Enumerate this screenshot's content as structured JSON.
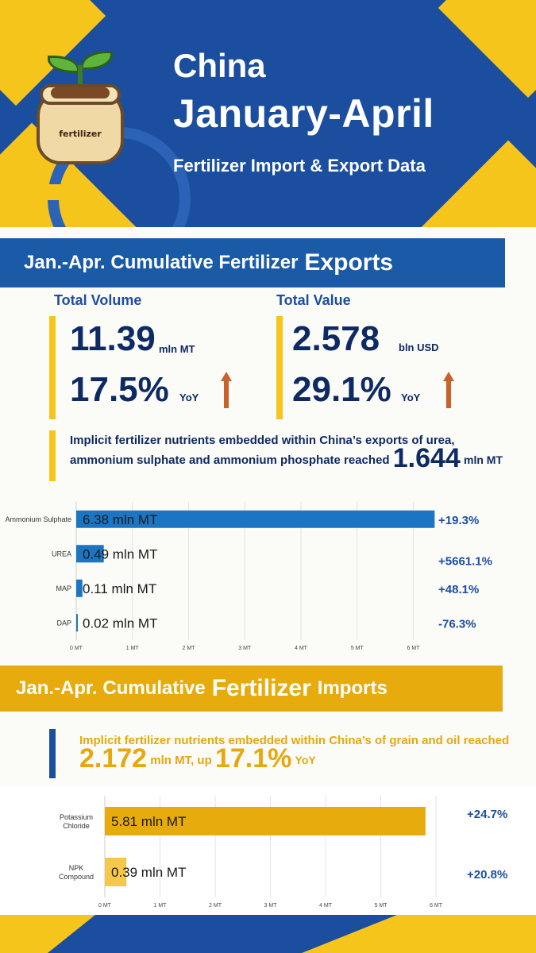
{
  "header": {
    "title": "China",
    "period": "January-April",
    "subtitle": "Fertilizer Import & Export Data",
    "logo_text": "fertilizer"
  },
  "exports": {
    "banner_prefix": "Jan.-Apr. Cumulative Fertilizer",
    "banner_emph": "Exports",
    "volume": {
      "heading": "Total Volume",
      "value": "11.39",
      "unit": "mln MT",
      "yoy": "17.5%",
      "yoy_label": "YoY"
    },
    "value": {
      "heading": "Total Value",
      "value": "2.578",
      "unit": "bln USD",
      "yoy": "29.1%",
      "yoy_label": "YoY"
    },
    "note": {
      "line1": "Implicit fertilizer nutrients embedded within China’s exports of urea,",
      "line2": "ammonium sulphate and ammonium phosphate reached",
      "value": "1.644",
      "unit": "mln MT"
    }
  },
  "imports": {
    "banner_prefix": "Jan.-Apr. Cumulative",
    "banner_emph": "Fertilizer",
    "banner_suffix": "Imports",
    "note": {
      "line1": "Implicit fertilizer nutrients embedded within China’s  of grain and oil reached",
      "value": "2.172",
      "mid": "mln MT, up",
      "pct": "17.1%",
      "yoy": "YoY"
    }
  },
  "colors": {
    "navy": "#1b4e9e",
    "gold": "#f5c51c",
    "export_bar": "#1b75c3",
    "import_bar": "#e8ab0e",
    "import_bar_light": "#f5c74a",
    "arrow": "#c8622a"
  },
  "chart_data": [
    {
      "type": "bar",
      "orientation": "horizontal",
      "categories": [
        "Ammonium Sulphate",
        "UREA",
        "MAP",
        "DAP"
      ],
      "values": [
        6.38,
        0.49,
        0.11,
        0.02
      ],
      "value_labels": [
        "6.38 mln MT",
        "0.49 mln MT",
        "0.11 mln MT",
        "0.02 mln MT"
      ],
      "change_labels": [
        "+19.3%",
        "+5661.1%",
        "+48.1%",
        "-76.3%"
      ],
      "xticks": [
        "0 MT",
        "1 MT",
        "2 MT",
        "3 MT",
        "4 MT",
        "5 MT",
        "6 MT"
      ],
      "xlim": [
        0,
        6.7
      ],
      "grid": true
    },
    {
      "type": "bar",
      "orientation": "horizontal",
      "categories": [
        "Potassium Chloride",
        "NPK Compound"
      ],
      "values": [
        5.81,
        0.39
      ],
      "value_labels": [
        "5.81 mln MT",
        "0.39 mln MT"
      ],
      "change_labels": [
        "+24.7%",
        "+20.8%"
      ],
      "xticks": [
        "0 MT",
        "1 MT",
        "2 MT",
        "3 MT",
        "4 MT",
        "5 MT",
        "6 MT"
      ],
      "xlim": [
        0,
        6.1
      ],
      "grid": true
    }
  ]
}
